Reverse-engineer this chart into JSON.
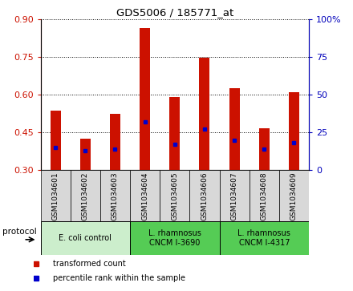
{
  "title": "GDS5006 / 185771_at",
  "samples": [
    "GSM1034601",
    "GSM1034602",
    "GSM1034603",
    "GSM1034604",
    "GSM1034605",
    "GSM1034606",
    "GSM1034607",
    "GSM1034608",
    "GSM1034609"
  ],
  "transformed_count": [
    0.535,
    0.425,
    0.525,
    0.865,
    0.59,
    0.745,
    0.625,
    0.465,
    0.61
  ],
  "percentile_rank": [
    15,
    13,
    14,
    32,
    17,
    27,
    20,
    14,
    18
  ],
  "bar_bottom": 0.3,
  "ylim_left": [
    0.3,
    0.9
  ],
  "ylim_right": [
    0,
    100
  ],
  "yticks_left": [
    0.3,
    0.45,
    0.6,
    0.75,
    0.9
  ],
  "yticks_right": [
    0,
    25,
    50,
    75,
    100
  ],
  "bar_color": "#cc1100",
  "dot_color": "#0000cc",
  "bar_width": 0.35,
  "groups": [
    {
      "label": "E. coli control",
      "indices": [
        0,
        1,
        2
      ],
      "color": "#cceecc"
    },
    {
      "label": "L. rhamnosus\nCNCM I-3690",
      "indices": [
        3,
        4,
        5
      ],
      "color": "#55cc55"
    },
    {
      "label": "L. rhamnosus\nCNCM I-4317",
      "indices": [
        6,
        7,
        8
      ],
      "color": "#55cc55"
    }
  ],
  "sample_box_color": "#d8d8d8",
  "protocol_label": "protocol",
  "legend_items": [
    {
      "label": "transformed count",
      "color": "#cc1100"
    },
    {
      "label": "percentile rank within the sample",
      "color": "#0000cc"
    }
  ],
  "tick_color_left": "#cc1100",
  "tick_color_right": "#0000bb",
  "plot_facecolor": "#ffffff"
}
